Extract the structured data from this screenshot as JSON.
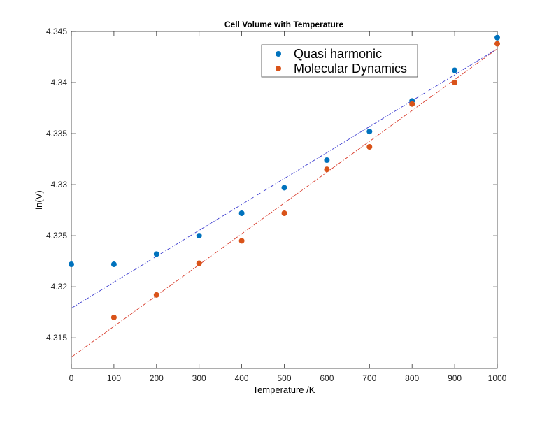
{
  "chart_data": {
    "type": "scatter",
    "title": "Cell Volume with Temperature",
    "xlabel": "Temperature /K",
    "ylabel": "ln(V)",
    "xlim": [
      0,
      1000
    ],
    "ylim": [
      4.312,
      4.345
    ],
    "xticks": [
      0,
      100,
      200,
      300,
      400,
      500,
      600,
      700,
      800,
      900,
      1000
    ],
    "xtick_labels": [
      "0",
      "100",
      "200",
      "300",
      "400",
      "500",
      "600",
      "700",
      "800",
      "900",
      "1000"
    ],
    "yticks": [
      4.315,
      4.32,
      4.325,
      4.33,
      4.335,
      4.34,
      4.345
    ],
    "ytick_labels": [
      "4.315",
      "4.32",
      "4.325",
      "4.33",
      "4.335",
      "4.34",
      "4.345"
    ],
    "grid": false,
    "legend_position": "top-center-right",
    "series": [
      {
        "name": "Quasi harmonic",
        "color": "#0072BD",
        "x": [
          0,
          100,
          200,
          300,
          400,
          500,
          600,
          700,
          800,
          900,
          1000
        ],
        "y": [
          4.3222,
          4.3222,
          4.3232,
          4.325,
          4.3272,
          4.3297,
          4.3324,
          4.3352,
          4.3382,
          4.3412,
          4.3444
        ]
      },
      {
        "name": "Molecular Dynamics",
        "color": "#D95319",
        "x": [
          100,
          200,
          300,
          400,
          500,
          600,
          700,
          800,
          900,
          1000
        ],
        "y": [
          4.317,
          4.3192,
          4.3223,
          4.3245,
          4.3272,
          4.3315,
          4.3337,
          4.3379,
          4.34,
          4.3438
        ]
      }
    ],
    "fit_lines": [
      {
        "series": "Quasi harmonic",
        "color": "#3a3acf",
        "x": [
          0,
          1000
        ],
        "y": [
          4.3179,
          4.3433
        ]
      },
      {
        "series": "Molecular Dynamics",
        "color": "#d83a2a",
        "x": [
          0,
          1000
        ],
        "y": [
          4.3131,
          4.3433
        ]
      }
    ]
  }
}
